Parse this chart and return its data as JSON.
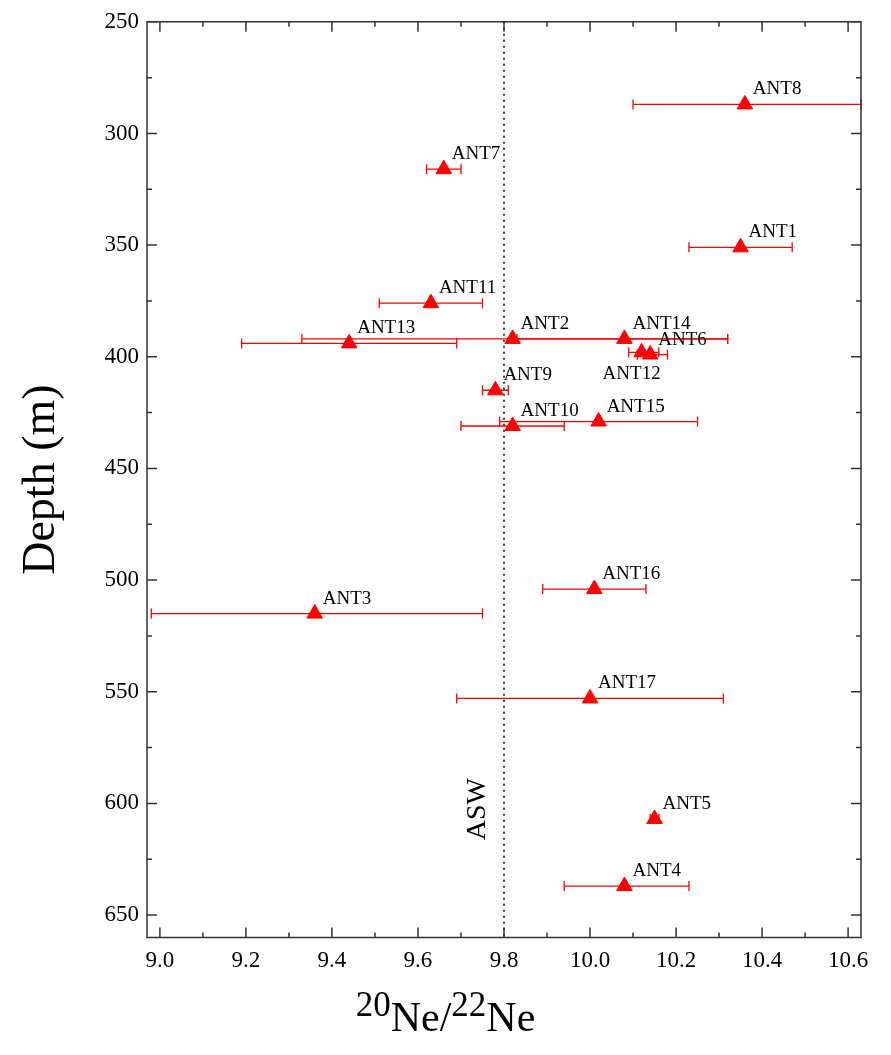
{
  "chart_data": {
    "type": "scatter",
    "xlabel": "$^{20}$Ne/$^{22}$Ne",
    "ylabel": "Depth (m)",
    "x": [
      10.35,
      9.82,
      9.36,
      10.08,
      10.15,
      10.14,
      9.66,
      10.36,
      9.78,
      9.82,
      9.63,
      10.12,
      9.44,
      10.08,
      10.02,
      10.01,
      10.0
    ],
    "series": [
      {
        "color": "#ff0000",
        "values": [
          351,
          392,
          515,
          637,
          607,
          399,
          316,
          287,
          415,
          431,
          376,
          398,
          394,
          392,
          429,
          504,
          553
        ],
        "xerrors": [
          [
            10.23,
            10.47
          ],
          [
            9.33,
            10.32
          ],
          [
            8.98,
            9.75
          ],
          [
            9.94,
            10.23
          ],
          [
            10.14,
            10.16
          ],
          [
            10.11,
            10.18
          ],
          [
            9.62,
            9.7
          ],
          [
            10.1,
            10.63
          ],
          [
            9.75,
            9.81
          ],
          [
            9.7,
            9.94
          ],
          [
            9.51,
            9.75
          ],
          [
            10.09,
            10.16
          ],
          [
            9.19,
            9.69
          ],
          [
            9.83,
            10.32
          ],
          [
            9.79,
            10.25
          ],
          [
            9.89,
            10.13
          ],
          [
            9.69,
            10.31
          ]
        ]
      }
    ],
    "annotations": [
      {
        "text": "ANT1",
        "x": 10.35,
        "y": 351
      },
      {
        "text": "ANT2",
        "x": 9.82,
        "y": 392
      },
      {
        "text": "ANT3",
        "x": 9.36,
        "y": 515
      },
      {
        "text": "ANT4",
        "x": 10.08,
        "y": 637
      },
      {
        "text": "ANT5",
        "x": 10.15,
        "y": 607
      },
      {
        "text": "ANT6",
        "x": 10.14,
        "y": 399
      },
      {
        "text": "ANT7",
        "x": 9.66,
        "y": 316
      },
      {
        "text": "ANT8",
        "x": 10.36,
        "y": 287
      },
      {
        "text": "ANT9",
        "x": 9.78,
        "y": 415
      },
      {
        "text": "ANT10",
        "x": 9.82,
        "y": 431
      },
      {
        "text": "ANT11",
        "x": 9.63,
        "y": 376
      },
      {
        "text": "ANT12",
        "x": 10.12,
        "y": 398
      },
      {
        "text": "ANT13",
        "x": 9.44,
        "y": 394
      },
      {
        "text": "ANT14",
        "x": 10.08,
        "y": 392
      },
      {
        "text": "ANT15",
        "x": 10.02,
        "y": 429
      },
      {
        "text": "ANT16",
        "x": 10.01,
        "y": 504
      },
      {
        "text": "ANT17",
        "x": 10.0,
        "y": 553
      }
    ],
    "ref_lines": [
      {
        "axis": "x",
        "value": 9.8,
        "label": "ASW",
        "line_style": "dotted",
        "color": "#000000"
      }
    ],
    "xlim": [
      8.97,
      10.63
    ],
    "xticks": [
      {
        "value": 9.0,
        "label": "9.0"
      },
      {
        "value": 9.1,
        "label": null
      },
      9.2,
      {
        "value": 9.3,
        "label": null
      },
      9.4,
      {
        "value": 9.5,
        "label": null
      },
      9.6,
      {
        "value": 9.7,
        "label": null
      },
      9.8,
      {
        "value": 9.9,
        "label": null
      },
      {
        "value": 10.0,
        "label": "10.0"
      },
      {
        "value": 10.1,
        "label": null
      },
      10.2,
      {
        "value": 10.3,
        "label": null
      },
      10.4,
      {
        "value": 10.5,
        "label": null
      },
      10.6
    ],
    "ylim": [
      660,
      250
    ],
    "yticks": [
      250,
      {
        "value": 275,
        "label": null
      },
      300,
      {
        "value": 325,
        "label": null
      },
      350,
      {
        "value": 375,
        "label": null
      },
      400,
      {
        "value": 425,
        "label": null
      },
      450,
      {
        "value": 475,
        "label": null
      },
      500,
      {
        "value": 525,
        "label": null
      },
      550,
      {
        "value": 575,
        "label": null
      },
      600,
      {
        "value": 625,
        "label": null
      },
      650
    ],
    "marker": "triangle",
    "legend": false
  }
}
